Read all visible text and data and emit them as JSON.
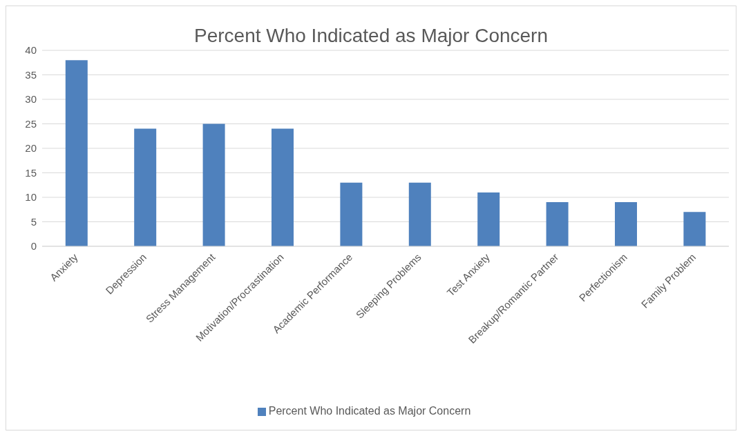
{
  "chart_data": {
    "type": "bar",
    "title": "Percent Who Indicated as Major Concern",
    "categories": [
      "Anxiety",
      "Depression",
      "Stress Management",
      "Motivation/Procrastination",
      "Academic Performance",
      "Sleeping Problems",
      "Test Anxiety",
      "Breakup/Romantic Partner",
      "Perfectionism",
      "Family Problem"
    ],
    "series": [
      {
        "name": "Percent Who Indicated as Major Concern",
        "color": "#4f81bd",
        "values": [
          38,
          24,
          25,
          24,
          13,
          13,
          11,
          9,
          9,
          7
        ]
      }
    ],
    "ylim": [
      0,
      40
    ],
    "yticks": [
      0,
      5,
      10,
      15,
      20,
      25,
      30,
      35,
      40
    ],
    "grid": "y",
    "legend": "bottom"
  }
}
